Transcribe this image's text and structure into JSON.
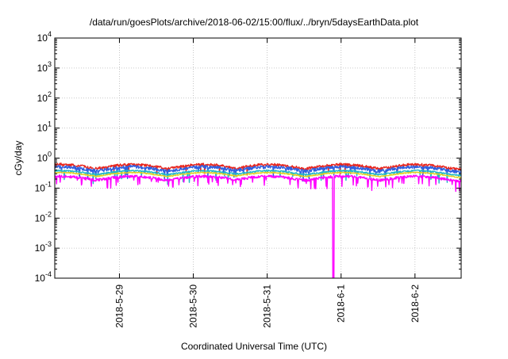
{
  "chart_data": {
    "type": "line",
    "title": "/data/run/goesPlots/archive/2018-06-02/15:00/flux/../bryn/5daysEarthData.plot",
    "xlabel": "Coordinated Universal Time (UTC)",
    "ylabel": "cGy/day",
    "yscale": "log",
    "ylim": [
      0.0001,
      10000
    ],
    "y_ticks": [
      {
        "value": 0.0001,
        "base": "10",
        "exp": "-4"
      },
      {
        "value": 0.001,
        "base": "10",
        "exp": "-3"
      },
      {
        "value": 0.01,
        "base": "10",
        "exp": "-2"
      },
      {
        "value": 0.1,
        "base": "10",
        "exp": "-1"
      },
      {
        "value": 1,
        "base": "10",
        "exp": "0"
      },
      {
        "value": 10,
        "base": "10",
        "exp": "1"
      },
      {
        "value": 100,
        "base": "10",
        "exp": "2"
      },
      {
        "value": 1000,
        "base": "10",
        "exp": "3"
      },
      {
        "value": 10000,
        "base": "10",
        "exp": "4"
      }
    ],
    "xlim": [
      "2018-05-28 03:00",
      "2018-06-02 15:00"
    ],
    "x_ticks": [
      {
        "value": "2018-05-29 00:00",
        "label": "2018-5-29"
      },
      {
        "value": "2018-05-30 00:00",
        "label": "2018-5-30"
      },
      {
        "value": "2018-05-31 00:00",
        "label": "2018-5-31"
      },
      {
        "value": "2018-06-01 00:00",
        "label": "2018-6-1"
      },
      {
        "value": "2018-06-02 00:00",
        "label": "2018-6-2"
      }
    ],
    "grid": true,
    "series": [
      {
        "color": "#e8261e",
        "base": 0.36,
        "amp": 1.25,
        "noise": 0.1,
        "spike_rate": 0.02
      },
      {
        "color": "#2f5fe0",
        "base": 0.3,
        "amp": 1.25,
        "noise": 0.12,
        "spike_rate": 0.05
      },
      {
        "color": "#20b8c8",
        "base": 0.23,
        "amp": 1.2,
        "noise": 0.06,
        "spike_rate": 0.03
      },
      {
        "color": "#e0d020",
        "base": 0.2,
        "amp": 1.2,
        "noise": 0.04,
        "spike_rate": 0.0
      },
      {
        "color": "#ff00ff",
        "base": 0.15,
        "amp": 1.2,
        "noise": 0.1,
        "spike_rate": 0.08,
        "dropout": "2018-05-31 21:30"
      }
    ],
    "peak_days": [
      "2018-05-28 05:00",
      "2018-05-29 04:00",
      "2018-05-30 03:30",
      "2018-05-31 00:30",
      "2018-06-01 00:30",
      "2018-06-02 00:30"
    ]
  }
}
